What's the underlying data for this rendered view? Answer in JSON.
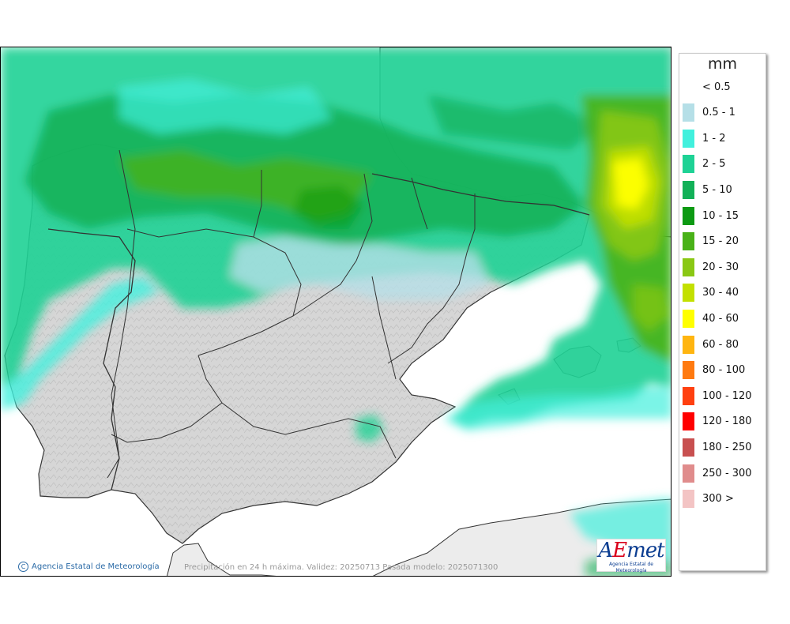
{
  "legend": {
    "unit": "mm",
    "classes": [
      {
        "label": "< 0.5",
        "color": "#ffffff"
      },
      {
        "label": "0.5 - 1",
        "color": "#b5dfe7"
      },
      {
        "label": "1 - 2",
        "color": "#41f0dd"
      },
      {
        "label": "2 - 5",
        "color": "#1ed295"
      },
      {
        "label": "5 - 10",
        "color": "#12b158"
      },
      {
        "label": "10 - 15",
        "color": "#0d9a13"
      },
      {
        "label": "15 - 20",
        "color": "#49b218"
      },
      {
        "label": "20 - 30",
        "color": "#8ac814"
      },
      {
        "label": "30 - 40",
        "color": "#c3e000"
      },
      {
        "label": "40 - 60",
        "color": "#ffff00"
      },
      {
        "label": "60 - 80",
        "color": "#ffb510"
      },
      {
        "label": "80 - 100",
        "color": "#ff7a10"
      },
      {
        "label": "100 - 120",
        "color": "#ff4010"
      },
      {
        "label": "120 - 180",
        "color": "#ff0000"
      },
      {
        "label": "180 - 250",
        "color": "#c85050"
      },
      {
        "label": "250 - 300",
        "color": "#e08c8c"
      },
      {
        "label": "300 >",
        "color": "#f3c4c4"
      }
    ]
  },
  "footer": {
    "credit": "Agencia Estatal de Meteorología",
    "copyright_symbol": "C",
    "caption": "Precipitación en 24 h máxima. Validez: 20250713 Pasada modelo: 2025071300"
  },
  "logo": {
    "word_a": "A",
    "word_e": "E",
    "word_rest": "met",
    "subtitle": "Agencia Estatal de Meteorología"
  },
  "map": {
    "sea_color": "#ffffff",
    "land_color": "#d8d8d8",
    "foreign_land_color": "#ececec",
    "border_color": "#333333"
  }
}
